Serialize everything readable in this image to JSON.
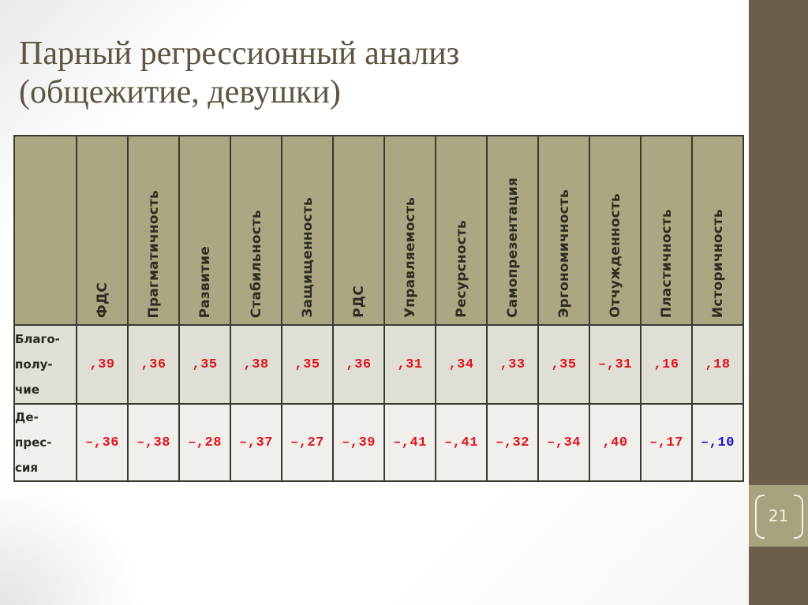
{
  "slide": {
    "title_line1": "Парный регрессионный анализ",
    "title_line2": "(общежитие, девушки)",
    "page_number": "21"
  },
  "colors": {
    "header_bg": "#aca783",
    "row1_bg": "#e0dfd6",
    "row2_bg": "#f0efeb",
    "side_bar": "#6a604a",
    "page_box": "#a7a37f",
    "significant_value": "#e0141c",
    "nonsignificant_value": "#1414c8",
    "title": "#5d5441"
  },
  "table": {
    "columns": [
      "ФДС",
      "Прагматичность",
      "Развитие",
      "Стабильность",
      "Защищенность",
      "РДС",
      "Управляемость",
      "Ресурсность",
      "Самопрезентация",
      "Эргономичность",
      "Отчужденность",
      "Пластичность",
      "Историчность"
    ],
    "rows": [
      {
        "label_lines": [
          "Благо-",
          "полу-",
          "чие"
        ],
        "values": [
          ",39",
          ",36",
          ",35",
          ",38",
          ",35",
          ",36",
          ",31",
          ",34",
          ",33",
          ",35",
          "–,31",
          ",16",
          ",18"
        ],
        "value_colors": [
          "red",
          "red",
          "red",
          "red",
          "red",
          "red",
          "red",
          "red",
          "red",
          "red",
          "red",
          "red",
          "red"
        ]
      },
      {
        "label_lines": [
          "Де-",
          "прес-",
          "сия"
        ],
        "values": [
          "–,36",
          "–,38",
          "–,28",
          "–,37",
          "–,27",
          "–,39",
          "–,41",
          "–,41",
          "–,32",
          "–,34",
          ",40",
          "–,17",
          "–,10"
        ],
        "value_colors": [
          "red",
          "red",
          "red",
          "red",
          "red",
          "red",
          "red",
          "red",
          "red",
          "red",
          "red",
          "red",
          "blue"
        ]
      }
    ]
  }
}
